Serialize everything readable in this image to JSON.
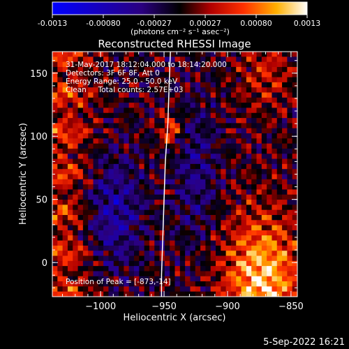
{
  "colorbar": {
    "tick_labels": [
      "-0.0013",
      "-0.00080",
      "-0.00027",
      "0.00027",
      "0.00080",
      "0.0013"
    ],
    "unit_label": "(photons cm⁻² s⁻¹ asec⁻²)"
  },
  "chart_data": {
    "type": "heatmap",
    "title": "Reconstructed RHESSI Image",
    "xlabel": "Heliocentric X (arcsec)",
    "ylabel": "Heliocentric Y (arcsec)",
    "xlim": [
      -1038,
      -845
    ],
    "ylim": [
      -27,
      167
    ],
    "x_ticks": [
      -1000,
      -950,
      -900,
      -850
    ],
    "x_tick_labels": [
      "−1000",
      "−950",
      "−900",
      "−850"
    ],
    "y_ticks": [
      0,
      50,
      100,
      150
    ],
    "y_tick_labels": [
      "0",
      "50",
      "100",
      "150"
    ],
    "annotations": [
      "31-May-2017 18:12:04.000 to 18:14:20.000",
      "Detectors: 3F 6F 8F, Att 0",
      "Energy Range: 25.0 - 50.0 keV",
      "Clean     Total counts: 2.57E+03"
    ],
    "peak_label": "Position of Peak = [-873,-14]",
    "peak": [
      -873,
      -14
    ],
    "color_range": [
      -0.0013,
      0.0013
    ],
    "limb": [
      [
        -945,
        167
      ],
      [
        -946,
        140
      ],
      [
        -947,
        110
      ],
      [
        -949,
        80
      ],
      [
        -950,
        50
      ],
      [
        -951,
        20
      ],
      [
        -952,
        -10
      ],
      [
        -952,
        -27
      ]
    ]
  },
  "footer": {
    "date": "5-Sep-2022 16:21"
  }
}
